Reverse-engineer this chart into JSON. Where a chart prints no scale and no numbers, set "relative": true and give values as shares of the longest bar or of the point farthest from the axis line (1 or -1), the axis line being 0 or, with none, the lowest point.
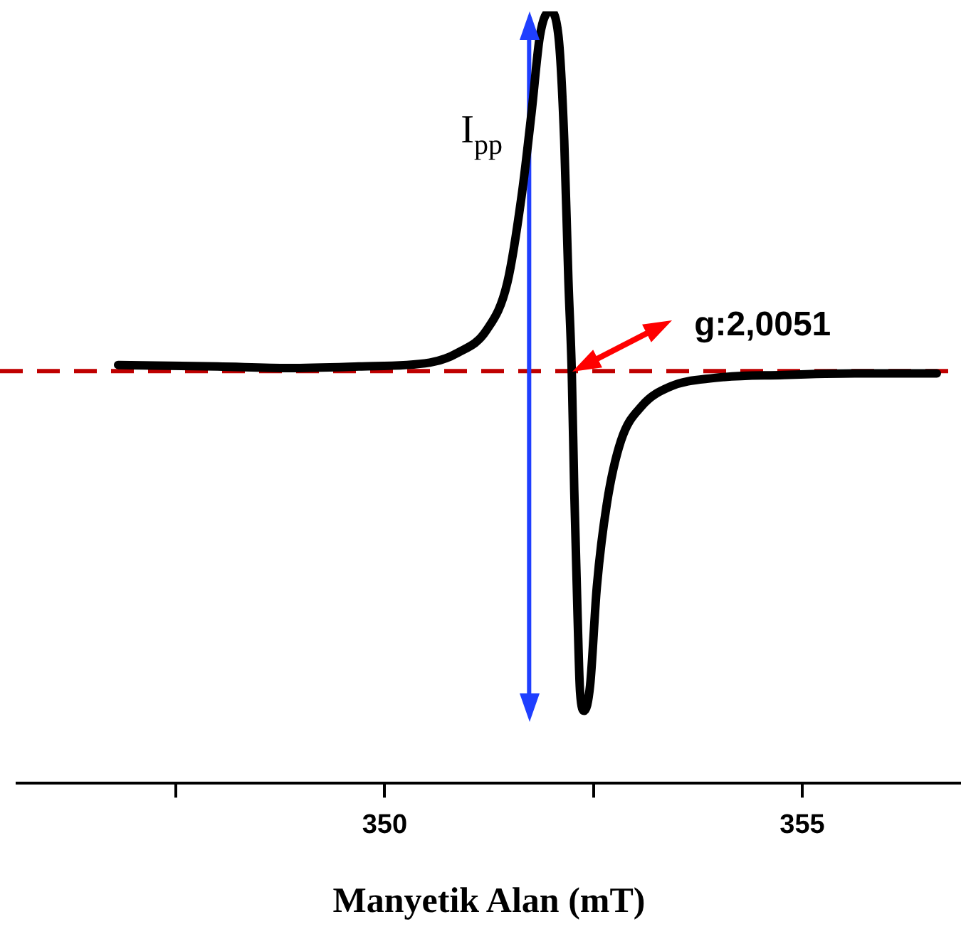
{
  "chart_data": {
    "type": "line",
    "relative": true,
    "xlabel": "Manyetik Alan (mT)",
    "x": [
      346.81,
      348.0,
      348.85,
      349.69,
      350.54,
      350.88,
      351.22,
      351.47,
      351.64,
      351.76,
      351.86,
      351.98,
      352.08,
      352.15,
      352.2,
      352.24,
      352.27,
      352.31,
      352.34,
      352.39,
      352.46,
      352.54,
      352.66,
      352.83,
      353.08,
      353.42,
      353.93,
      354.78,
      355.63,
      356.61
    ],
    "series": [
      {
        "color": "#000000",
        "values": [
          0.542,
          0.54,
          0.538,
          0.54,
          0.545,
          0.558,
          0.587,
          0.649,
          0.761,
          0.87,
          0.969,
          1,
          0.969,
          0.833,
          0.652,
          0.534,
          0.38,
          0.217,
          0.118,
          0.094,
          0.127,
          0.254,
          0.362,
          0.444,
          0.489,
          0.514,
          0.525,
          0.529,
          0.531,
          0.531
        ]
      }
    ],
    "xlim": [
      345.6,
      356.9
    ],
    "xticks": [
      {
        "value": 347.5,
        "label": null
      },
      350,
      {
        "value": 352.5,
        "label": null
      },
      355
    ],
    "grid": false,
    "marker": "none",
    "line_style": "solid",
    "ref_lines": [
      {
        "axis": "y",
        "value": 0.534,
        "color": "#c00000",
        "line_style": "dashed"
      },
      {
        "axis": "x",
        "value": 351.73,
        "label": "I$_{pp}$",
        "color": "#1f3fff",
        "line_style": "solid"
      }
    ],
    "annotations": [
      "g:2,0051"
    ]
  }
}
